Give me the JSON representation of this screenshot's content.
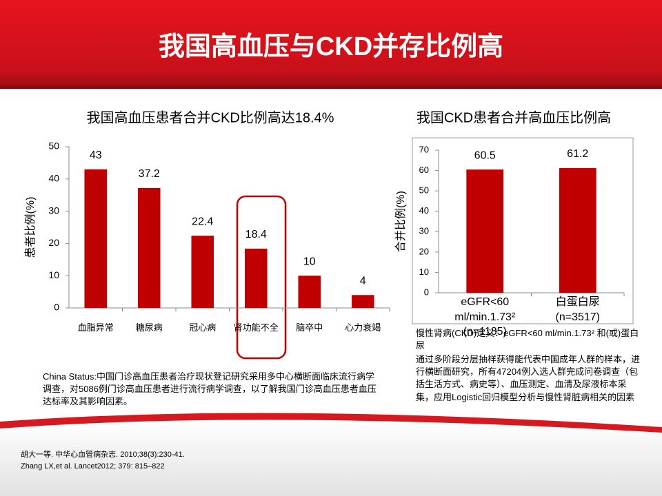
{
  "slide_title": "我国高血压与CKD并存比例高",
  "chart_data": [
    {
      "type": "bar",
      "title": "我国高血压患者合并CKD比例高达18.4%",
      "y_label": "患者比例(%)",
      "categories": [
        "血脂异常",
        "糖尿病",
        "冠心病",
        "肾功能不全",
        "脑卒中",
        "心力衰竭"
      ],
      "values": [
        43,
        37.2,
        22.4,
        18.4,
        10,
        4
      ],
      "color": "#c00000",
      "ylim": [
        0,
        50
      ],
      "yticks": [
        0,
        10,
        20,
        30,
        40,
        50
      ]
    },
    {
      "type": "bar",
      "title": "我国CKD患者合并高血压比例高",
      "y_label": "合并比例(%)",
      "categories": [
        "eGFR<60 ml/min.1.73²\n(n=1185)",
        "白蛋白尿\n(n=3517)"
      ],
      "values": [
        60.5,
        61.2
      ],
      "color": "#c00000",
      "ylim": [
        0,
        70
      ],
      "yticks": [
        0,
        10,
        20,
        30,
        40,
        50,
        60,
        70
      ]
    }
  ],
  "study_note": "China Status:中国门诊高血压患者治疗现状登记研究采用多中心横断面临床流行病学调查，对5086例门诊高血压患者进行流行病学调查，以了解我国门诊高血压患者血压达标率及其影响因素。",
  "ckd_definition": "慢性肾病(CKD)定义：eGFR<60 ml/min.1.73² 和(或)蛋白尿",
  "ckd_method": "通过多阶段分层抽样获得能代表中国成年人群的样本，进行横断面研究，所有47204例入选人群完成问卷调查（包括生活方式、病史等）、血压测定、血清及尿液标本采集，应用Logistic回归模型分析与慢性肾脏病相关的因素",
  "references": [
    "胡大一等. 中华心血管病杂志. 2010;38(3):230-41.",
    "Zhang LX,et al. Lancet2012; 379: 815–822"
  ]
}
